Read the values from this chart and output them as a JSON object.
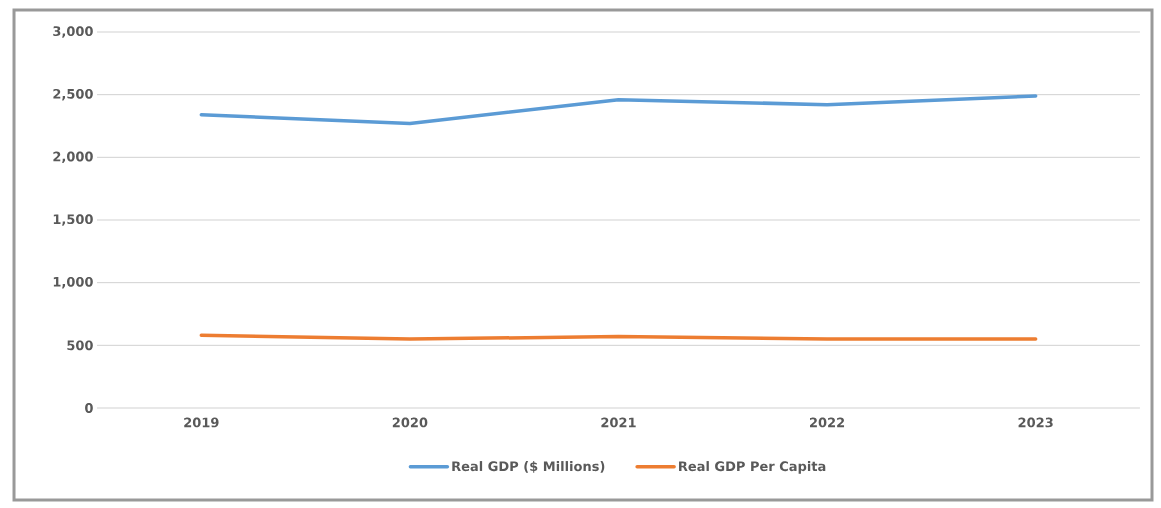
{
  "chart_data": {
    "type": "line",
    "categories": [
      "2019",
      "2020",
      "2021",
      "2022",
      "2023"
    ],
    "series": [
      {
        "name": "Real GDP ($ Millions)",
        "color": "#5b9bd5",
        "values": [
          2340,
          2270,
          2460,
          2420,
          2490
        ]
      },
      {
        "name": "Real GDP Per Capita",
        "color": "#ed7d31",
        "values": [
          580,
          550,
          570,
          550,
          550
        ]
      }
    ],
    "ylim": [
      0,
      3000
    ],
    "yticks": [
      {
        "value": 0,
        "label": "0"
      },
      {
        "value": 500,
        "label": "500"
      },
      {
        "value": 1000,
        "label": "1,000"
      },
      {
        "value": 1500,
        "label": "1,500"
      },
      {
        "value": 2000,
        "label": "2,000"
      },
      {
        "value": 2500,
        "label": "2,500"
      },
      {
        "value": 3000,
        "label": "3,000"
      }
    ],
    "grid": "y",
    "legend": "bottom",
    "marker": "none",
    "line_style": "solid"
  }
}
